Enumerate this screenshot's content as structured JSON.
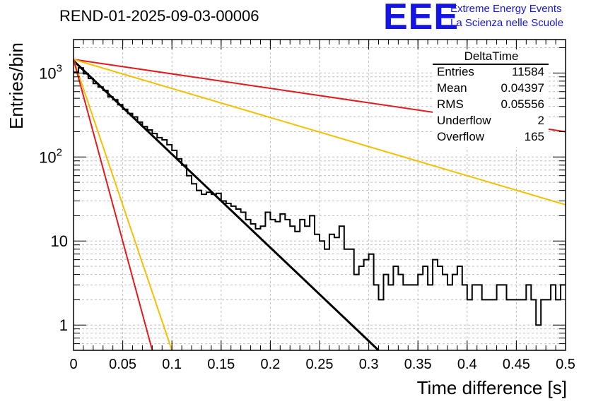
{
  "header": {
    "title": "REND-01-2025-09-03-00006",
    "logo_text": "EEE",
    "logo_line1": "Extreme Energy Events",
    "logo_line2": "La Scienza nelle Scuole"
  },
  "stats_box": {
    "name": "DeltaTime",
    "rows": [
      {
        "key": "Entries",
        "value": "11584"
      },
      {
        "key": "Mean",
        "value": "0.04397"
      },
      {
        "key": "RMS",
        "value": "0.05556"
      },
      {
        "key": "Underflow",
        "value": "2"
      },
      {
        "key": "Overflow",
        "value": "165"
      }
    ]
  },
  "chart_data": {
    "type": "line",
    "xlabel": "Time difference [s]",
    "ylabel": "Entries/bin",
    "xlim": [
      0,
      0.5
    ],
    "ylim": [
      0.5,
      2500
    ],
    "log_y": true,
    "grid": true,
    "x_ticks": [
      "0",
      "0.05",
      "0.1",
      "0.15",
      "0.2",
      "0.25",
      "0.3",
      "0.35",
      "0.4",
      "0.45",
      "0.5"
    ],
    "y_ticks": [
      {
        "value": 1,
        "label": "1"
      },
      {
        "value": 10,
        "label": "10"
      },
      {
        "value": 100,
        "label": "10^2"
      },
      {
        "value": 1000,
        "label": "10^3"
      }
    ],
    "histogram": {
      "bin_width": 0.005,
      "values": [
        1020,
        1150,
        980,
        860,
        750,
        680,
        620,
        520,
        480,
        420,
        370,
        330,
        300,
        260,
        230,
        210,
        190,
        170,
        160,
        140,
        120,
        95,
        80,
        60,
        48,
        40,
        36,
        38,
        36,
        37,
        30,
        28,
        26,
        24,
        22,
        18,
        16,
        14,
        15,
        22,
        18,
        17,
        21,
        18,
        15,
        13,
        18,
        15,
        20,
        12,
        10,
        8,
        12,
        11,
        15,
        8,
        8,
        4,
        5,
        6,
        7,
        3,
        2,
        4,
        3,
        5,
        4,
        3,
        3,
        3,
        4,
        5,
        3,
        6,
        5,
        4,
        3,
        4,
        5,
        3,
        2,
        3,
        3,
        2,
        2,
        2,
        3,
        3,
        2,
        2,
        2,
        2,
        3,
        2,
        1,
        2,
        2,
        3,
        2,
        3
      ],
      "color": "#000000"
    },
    "series": [
      {
        "x": [
          0,
          0.5
        ],
        "y": [
          1450,
          200
        ],
        "color": "#e41a1a"
      },
      {
        "x": [
          0,
          0.5
        ],
        "y": [
          1450,
          27
        ],
        "color": "#f5c000"
      },
      {
        "x": [
          0,
          0.31
        ],
        "y": [
          1400,
          0.5
        ],
        "color": "#000000"
      },
      {
        "x": [
          0,
          0.1
        ],
        "y": [
          1450,
          0.5
        ],
        "color": "#f5c000"
      },
      {
        "x": [
          0,
          0.08
        ],
        "y": [
          1450,
          0.5
        ],
        "color": "#e41a1a"
      }
    ]
  }
}
